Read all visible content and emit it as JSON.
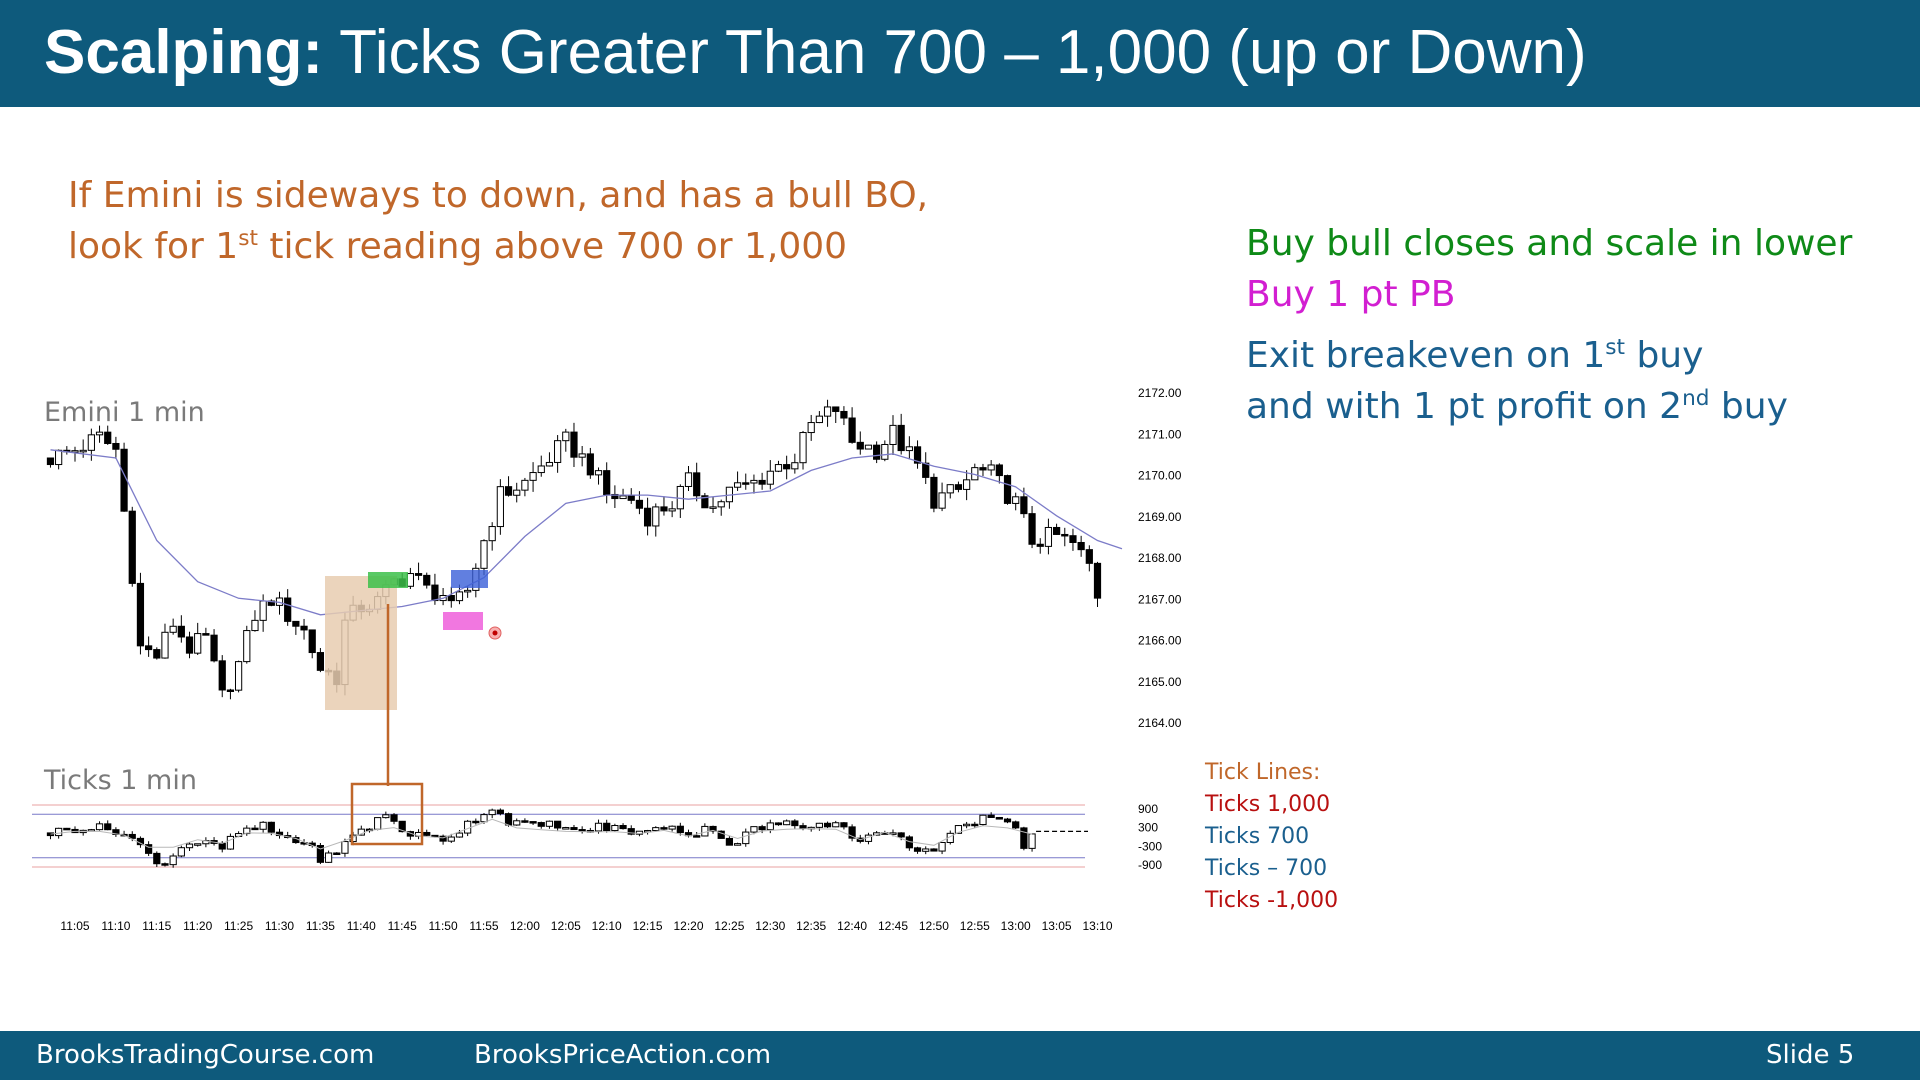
{
  "slide": {
    "title_bold": "Scalping:",
    "title_rest": " Ticks Greater Than 700 – 1,000 (up or Down)",
    "intro_line1": "If Emini is sideways to down, and has a bull BO,",
    "intro_line2_pre": "look for 1",
    "intro_line2_sup": "st",
    "intro_line2_post": " tick reading above 700 or 1,000",
    "note_buy_bull": "Buy bull closes and scale in lower",
    "note_buy_pb": "Buy 1 pt PB",
    "note_exit1_pre": "Exit breakeven on 1",
    "note_exit1_sup": "st",
    "note_exit1_post": " buy",
    "note_exit2_pre": "and with 1 pt profit on 2",
    "note_exit2_sup": "nd",
    "note_exit2_post": " buy",
    "price_panel_label": "Emini 1 min",
    "ticks_panel_label": "Ticks 1 min"
  },
  "tick_legend": {
    "title": "Tick Lines:",
    "items": [
      "Ticks 1,000",
      "Ticks 700",
      "Ticks – 700",
      "Ticks -1,000"
    ]
  },
  "footer": {
    "left": "BrooksTradingCourse.com",
    "center": "BrooksPriceAction.com",
    "right": "Slide  5"
  },
  "colors": {
    "header_bg": "#0e5a7c",
    "bull_bar": "#ffffff",
    "bear_bar": "#000000",
    "ema": "#7c7cc8",
    "orange_accent": "#c0672a",
    "highlight_green": "#3cc04a",
    "highlight_blue": "#3a5fd8",
    "highlight_magenta": "#ee55d8",
    "tick_line_1000": "#e8a0a0",
    "tick_line_700": "#7878c8"
  },
  "chart_data": [
    {
      "type": "candlestick",
      "title": "Emini 1 min",
      "x_tick_labels": [
        "11:05",
        "11:10",
        "11:15",
        "11:20",
        "11:25",
        "11:30",
        "11:35",
        "11:40",
        "11:45",
        "11:50",
        "11:55",
        "12:00",
        "12:05",
        "12:10",
        "12:15",
        "12:20",
        "12:25",
        "12:30",
        "12:35",
        "12:40",
        "12:45",
        "12:50",
        "12:55",
        "13:00",
        "13:05",
        "13:10"
      ],
      "y_tick_labels": [
        "2172.00",
        "2171.00",
        "2170.00",
        "2169.00",
        "2168.00",
        "2167.00",
        "2166.00",
        "2165.00",
        "2164.00"
      ],
      "ylim": [
        2164,
        2172
      ],
      "close_path": [
        [
          "11:02",
          2170.4
        ],
        [
          "11:05",
          2170.6
        ],
        [
          "11:08",
          2170.9
        ],
        [
          "11:10",
          2170.6
        ],
        [
          "11:11",
          2169.1
        ],
        [
          "11:12",
          2167.6
        ],
        [
          "11:13",
          2165.8
        ],
        [
          "11:15",
          2165.6
        ],
        [
          "11:17",
          2166.4
        ],
        [
          "11:19",
          2165.8
        ],
        [
          "11:21",
          2166.0
        ],
        [
          "11:23",
          2164.6
        ],
        [
          "11:25",
          2165.4
        ],
        [
          "11:27",
          2166.6
        ],
        [
          "11:29",
          2167.0
        ],
        [
          "11:31",
          2166.6
        ],
        [
          "11:33",
          2166.2
        ],
        [
          "11:35",
          2165.3
        ],
        [
          "11:37",
          2165.1
        ],
        [
          "11:38",
          2166.4
        ],
        [
          "11:40",
          2166.8
        ],
        [
          "11:42",
          2166.9
        ],
        [
          "11:44",
          2167.4
        ],
        [
          "11:46",
          2167.6
        ],
        [
          "11:48",
          2167.2
        ],
        [
          "11:50",
          2167.1
        ],
        [
          "11:51",
          2166.7
        ],
        [
          "11:53",
          2167.2
        ],
        [
          "11:55",
          2168.4
        ],
        [
          "11:57",
          2169.5
        ],
        [
          "12:00",
          2169.8
        ],
        [
          "12:03",
          2170.4
        ],
        [
          "12:05",
          2170.8
        ],
        [
          "12:08",
          2170.2
        ],
        [
          "12:10",
          2169.5
        ],
        [
          "12:13",
          2169.4
        ],
        [
          "12:15",
          2169.0
        ],
        [
          "12:18",
          2169.3
        ],
        [
          "12:20",
          2169.8
        ],
        [
          "12:23",
          2169.2
        ],
        [
          "12:25",
          2169.6
        ],
        [
          "12:28",
          2169.8
        ],
        [
          "12:30",
          2170.1
        ],
        [
          "12:33",
          2170.4
        ],
        [
          "12:35",
          2171.2
        ],
        [
          "12:38",
          2171.6
        ],
        [
          "12:40",
          2170.8
        ],
        [
          "12:43",
          2170.6
        ],
        [
          "12:45",
          2171.0
        ],
        [
          "12:48",
          2170.2
        ],
        [
          "12:50",
          2169.4
        ],
        [
          "12:53",
          2169.6
        ],
        [
          "12:55",
          2170.1
        ],
        [
          "12:57",
          2170.0
        ],
        [
          "13:00",
          2169.3
        ],
        [
          "13:02",
          2168.4
        ],
        [
          "13:05",
          2168.5
        ],
        [
          "13:07",
          2168.3
        ],
        [
          "13:09",
          2167.8
        ],
        [
          "13:10",
          2167.1
        ]
      ],
      "ema_path": [
        [
          "11:02",
          2170.6
        ],
        [
          "11:10",
          2170.4
        ],
        [
          "11:15",
          2168.4
        ],
        [
          "11:20",
          2167.4
        ],
        [
          "11:25",
          2167.0
        ],
        [
          "11:30",
          2166.9
        ],
        [
          "11:35",
          2166.6
        ],
        [
          "11:40",
          2166.7
        ],
        [
          "11:45",
          2166.8
        ],
        [
          "11:50",
          2167.0
        ],
        [
          "11:55",
          2167.5
        ],
        [
          "12:00",
          2168.5
        ],
        [
          "12:05",
          2169.3
        ],
        [
          "12:10",
          2169.5
        ],
        [
          "12:15",
          2169.5
        ],
        [
          "12:20",
          2169.4
        ],
        [
          "12:25",
          2169.5
        ],
        [
          "12:30",
          2169.6
        ],
        [
          "12:35",
          2170.1
        ],
        [
          "12:40",
          2170.4
        ],
        [
          "12:45",
          2170.5
        ],
        [
          "12:50",
          2170.2
        ],
        [
          "12:55",
          2170.0
        ],
        [
          "13:00",
          2169.7
        ],
        [
          "13:05",
          2169.0
        ],
        [
          "13:10",
          2168.4
        ],
        [
          "13:13",
          2168.2
        ]
      ]
    },
    {
      "type": "bar",
      "title": "Ticks 1 min",
      "y_tick_labels": [
        "900",
        "300",
        "-300",
        "-900"
      ],
      "x_tick_labels": [
        "11:05",
        "11:10",
        "11:15",
        "11:20",
        "11:25",
        "11:30",
        "11:35",
        "11:40",
        "11:45",
        "11:50",
        "11:55",
        "12:00",
        "12:05",
        "12:10",
        "12:15",
        "12:20",
        "12:25",
        "12:30",
        "12:35",
        "12:40",
        "12:45",
        "12:50",
        "12:55",
        "13:00",
        "13:05",
        "13:10"
      ],
      "reference_lines": [
        1000,
        700,
        -700,
        -1000
      ],
      "value_path": [
        [
          "11:02",
          100
        ],
        [
          "11:06",
          300
        ],
        [
          "11:10",
          200
        ],
        [
          "11:12",
          -100
        ],
        [
          "11:14",
          -600
        ],
        [
          "11:16",
          -900
        ],
        [
          "11:18",
          -300
        ],
        [
          "11:20",
          -200
        ],
        [
          "11:23",
          -400
        ],
        [
          "11:25",
          100
        ],
        [
          "11:28",
          300
        ],
        [
          "11:30",
          0
        ],
        [
          "11:33",
          -200
        ],
        [
          "11:35",
          -700
        ],
        [
          "11:37",
          -600
        ],
        [
          "11:39",
          100
        ],
        [
          "11:41",
          300
        ],
        [
          "11:43",
          700
        ],
        [
          "11:45",
          200
        ],
        [
          "11:47",
          0
        ],
        [
          "11:50",
          -100
        ],
        [
          "11:52",
          200
        ],
        [
          "11:54",
          600
        ],
        [
          "11:56",
          900
        ],
        [
          "11:58",
          500
        ],
        [
          "12:01",
          300
        ],
        [
          "12:04",
          400
        ],
        [
          "12:06",
          100
        ],
        [
          "12:09",
          300
        ],
        [
          "12:12",
          200
        ],
        [
          "12:15",
          100
        ],
        [
          "12:18",
          400
        ],
        [
          "12:20",
          0
        ],
        [
          "12:23",
          300
        ],
        [
          "12:25",
          -300
        ],
        [
          "12:28",
          200
        ],
        [
          "12:31",
          400
        ],
        [
          "12:34",
          300
        ],
        [
          "12:36",
          500
        ],
        [
          "12:39",
          300
        ],
        [
          "12:41",
          -200
        ],
        [
          "12:44",
          200
        ],
        [
          "12:47",
          -300
        ],
        [
          "12:50",
          -500
        ],
        [
          "12:53",
          200
        ],
        [
          "12:55",
          400
        ],
        [
          "12:57",
          700
        ],
        [
          "13:00",
          300
        ],
        [
          "13:01",
          -300
        ],
        [
          "13:02",
          100
        ]
      ],
      "projection": 150
    }
  ]
}
